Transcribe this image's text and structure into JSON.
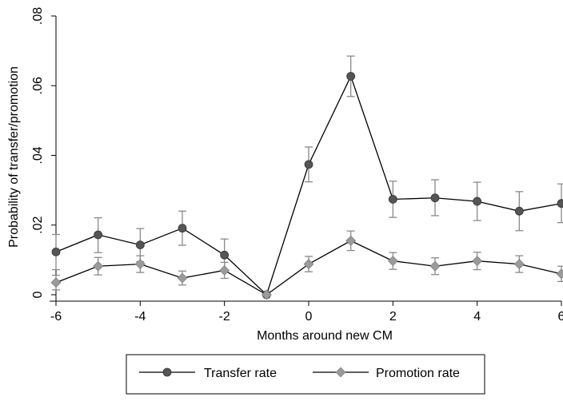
{
  "chart_data": {
    "type": "line",
    "xlabel": "Months around new CM",
    "ylabel": "Probability of transfer/promotion",
    "x": [
      -6,
      -5,
      -4,
      -3,
      -2,
      -1,
      0,
      1,
      2,
      3,
      4,
      5,
      6
    ],
    "xlim": [
      -6,
      6
    ],
    "ylim": [
      0,
      0.08
    ],
    "x_ticks": [
      -6,
      -4,
      -2,
      0,
      2,
      4,
      6
    ],
    "x_tick_labels": [
      "-6",
      "-4",
      "-2",
      "0",
      "2",
      "4",
      "6"
    ],
    "y_ticks": [
      0,
      0.02,
      0.04,
      0.06,
      0.08
    ],
    "y_tick_labels": [
      "0",
      ".02",
      ".04",
      ".06",
      ".08"
    ],
    "grid": false,
    "legend_position": "bottom",
    "series": [
      {
        "name": "Transfer rate",
        "color": "#555555",
        "marker": "circle",
        "values": [
          0.0123,
          0.0172,
          0.0143,
          0.0191,
          0.0114,
          0.0,
          0.0374,
          0.0627,
          0.0274,
          0.0278,
          0.0268,
          0.024,
          0.0262
        ],
        "ci_low": [
          0.0072,
          0.0121,
          0.0095,
          0.0142,
          0.0068,
          0.0,
          0.0324,
          0.0569,
          0.0222,
          0.0227,
          0.0213,
          0.0184,
          0.0207
        ],
        "ci_high": [
          0.0173,
          0.0221,
          0.019,
          0.024,
          0.016,
          0.0,
          0.0424,
          0.0685,
          0.0326,
          0.033,
          0.0323,
          0.0296,
          0.0318
        ]
      },
      {
        "name": "Promotion rate",
        "color": "#9a9a9a",
        "marker": "diamond",
        "values": [
          0.0035,
          0.0082,
          0.0088,
          0.0048,
          0.007,
          0.0,
          0.0088,
          0.0155,
          0.0097,
          0.0082,
          0.0097,
          0.0088,
          0.006
        ],
        "ci_low": [
          0.0014,
          0.0057,
          0.0064,
          0.0028,
          0.0047,
          0.0,
          0.0066,
          0.0127,
          0.0073,
          0.0058,
          0.0072,
          0.0064,
          0.0038
        ],
        "ci_high": [
          0.0056,
          0.0107,
          0.0112,
          0.0068,
          0.0093,
          0.0,
          0.011,
          0.0183,
          0.0121,
          0.0106,
          0.0122,
          0.0112,
          0.0082
        ]
      }
    ]
  }
}
